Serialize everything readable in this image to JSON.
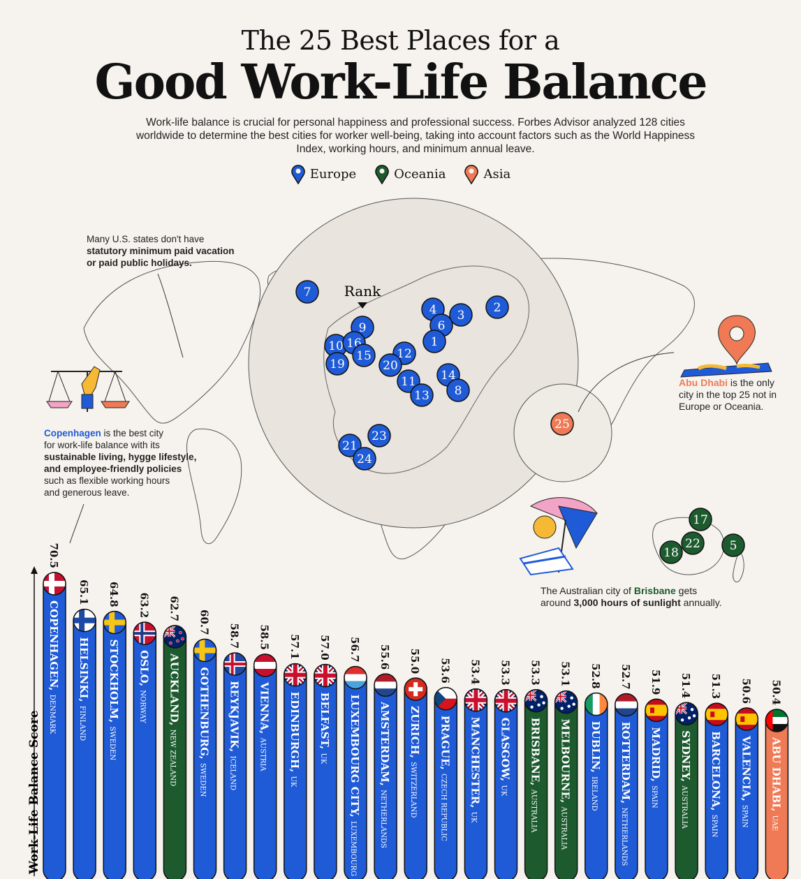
{
  "header": {
    "title_line1": "The 25 Best Places for a",
    "title_line2": "Good Work-Life Balance",
    "intro": "Work-life balance is crucial for personal happiness and professional success. Forbes Advisor analyzed 128 cities worldwide to determine the best cities for worker well-being, taking into account factors such as the World Happiness Index, working hours, and minimum annual leave."
  },
  "legend": [
    {
      "label": "Europe",
      "color": "#1f5bd6"
    },
    {
      "label": "Oceania",
      "color": "#1d5b2f"
    },
    {
      "label": "Asia",
      "color": "#ef7a55"
    }
  ],
  "map": {
    "rank_label": "Rank",
    "markers": [
      {
        "rank": "7",
        "region": "Europe"
      },
      {
        "rank": "4",
        "region": "Europe"
      },
      {
        "rank": "3",
        "region": "Europe"
      },
      {
        "rank": "2",
        "region": "Europe"
      },
      {
        "rank": "6",
        "region": "Europe"
      },
      {
        "rank": "1",
        "region": "Europe"
      },
      {
        "rank": "9",
        "region": "Europe"
      },
      {
        "rank": "10",
        "region": "Europe"
      },
      {
        "rank": "16",
        "region": "Europe"
      },
      {
        "rank": "15",
        "region": "Europe"
      },
      {
        "rank": "19",
        "region": "Europe"
      },
      {
        "rank": "12",
        "region": "Europe"
      },
      {
        "rank": "20",
        "region": "Europe"
      },
      {
        "rank": "11",
        "region": "Europe"
      },
      {
        "rank": "14",
        "region": "Europe"
      },
      {
        "rank": "8",
        "region": "Europe"
      },
      {
        "rank": "13",
        "region": "Europe"
      },
      {
        "rank": "23",
        "region": "Europe"
      },
      {
        "rank": "21",
        "region": "Europe"
      },
      {
        "rank": "24",
        "region": "Europe"
      },
      {
        "rank": "25",
        "region": "Asia"
      },
      {
        "rank": "17",
        "region": "Oceania"
      },
      {
        "rank": "22",
        "region": "Oceania"
      },
      {
        "rank": "18",
        "region": "Oceania"
      },
      {
        "rank": "5",
        "region": "Oceania"
      }
    ]
  },
  "notes": {
    "us_1": "Many U.S. states don't have",
    "us_2": "statutory minimum paid vacation",
    "us_3": "or paid public holidays.",
    "cph_city": "Copenhagen",
    "cph_1": " is the best city",
    "cph_2": "for work-life balance with its",
    "cph_3": "sustainable living, hygge lifestyle,",
    "cph_4": "and employee-friendly policies",
    "cph_5": "such as flexible working hours",
    "cph_6": "and generous leave.",
    "abu_city": "Abu Dhabi",
    "abu_1": " is the only",
    "abu_2": "city in the top 25 not in",
    "abu_3": "Europe or Oceania.",
    "bris_1": "The Australian city of ",
    "bris_city": "Brisbane",
    "bris_2": " gets",
    "bris_3": "around ",
    "bris_bold": "3,000 hours of sunlight",
    "bris_4": " annually."
  },
  "chart_data": {
    "type": "bar",
    "ylabel": "Work-Life Balance Score",
    "categories": [
      "COPENHAGEN",
      "HELSINKI",
      "STOCKHOLM",
      "OSLO",
      "AUCKLAND",
      "GOTHENBURG",
      "REYKJAVIK",
      "VIENNA",
      "EDINBURGH",
      "BELFAST",
      "LUXEMBOURG CITY",
      "AMSTERDAM",
      "ZURICH",
      "PRAGUE",
      "MANCHESTER",
      "GLASGOW",
      "BRISBANE",
      "MELBOURNE",
      "DUBLIN",
      "ROTTERDAM",
      "MADRID",
      "SYDNEY",
      "BARCELONA",
      "VALENCIA",
      "ABU DHABI"
    ],
    "countries": [
      "DENMARK",
      "FINLAND",
      "SWEDEN",
      "NORWAY",
      "NEW ZEALAND",
      "SWEDEN",
      "ICELAND",
      "AUSTRIA",
      "UK",
      "UK",
      "LUXEMBOURG",
      "NETHERLANDS",
      "SWITZERLAND",
      "CZECH REPUBLIC",
      "UK",
      "UK",
      "AUSTRALIA",
      "AUSTRALIA",
      "IRELAND",
      "NETHERLANDS",
      "SPAIN",
      "AUSTRALIA",
      "SPAIN",
      "SPAIN",
      "UAE"
    ],
    "values": [
      70.5,
      65.1,
      64.8,
      63.2,
      62.7,
      60.7,
      58.7,
      58.5,
      57.1,
      57.0,
      56.7,
      55.6,
      55.0,
      53.6,
      53.4,
      53.3,
      53.3,
      53.1,
      52.8,
      52.7,
      51.9,
      51.4,
      51.3,
      50.6,
      50.4
    ],
    "value_labels": [
      "70.5",
      "65.1",
      "64.8",
      "63.2",
      "62.7",
      "60.7",
      "58.7",
      "58.5",
      "57.1",
      "57.0",
      "56.7",
      "55.6",
      "55.0",
      "53.6",
      "53.4",
      "53.3",
      "53.3",
      "53.1",
      "52.8",
      "52.7",
      "51.9",
      "51.4",
      "51.3",
      "50.6",
      "50.4"
    ],
    "regions": [
      "Europe",
      "Europe",
      "Europe",
      "Europe",
      "Oceania",
      "Europe",
      "Europe",
      "Europe",
      "Europe",
      "Europe",
      "Europe",
      "Europe",
      "Europe",
      "Europe",
      "Europe",
      "Europe",
      "Oceania",
      "Oceania",
      "Europe",
      "Europe",
      "Europe",
      "Oceania",
      "Europe",
      "Europe",
      "Asia"
    ],
    "flags": [
      "denmark",
      "finland",
      "sweden",
      "norway",
      "new-zealand",
      "sweden",
      "iceland",
      "austria",
      "uk",
      "uk",
      "luxembourg",
      "netherlands",
      "switzerland",
      "czech-republic",
      "uk",
      "uk",
      "australia",
      "australia",
      "ireland",
      "netherlands",
      "spain",
      "australia",
      "spain",
      "spain",
      "uae"
    ]
  }
}
